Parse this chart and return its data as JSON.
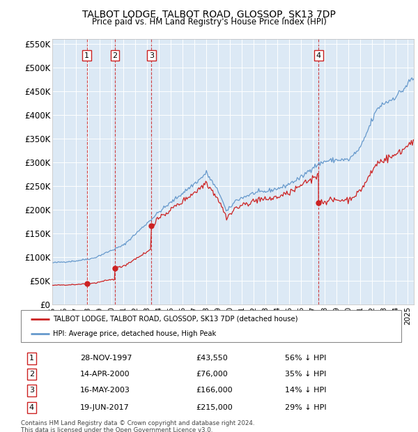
{
  "title": "TALBOT LODGE, TALBOT ROAD, GLOSSOP, SK13 7DP",
  "subtitle": "Price paid vs. HM Land Registry's House Price Index (HPI)",
  "ylim": [
    0,
    560000
  ],
  "yticks": [
    0,
    50000,
    100000,
    150000,
    200000,
    250000,
    300000,
    350000,
    400000,
    450000,
    500000,
    550000
  ],
  "ytick_labels": [
    "£0",
    "£50K",
    "£100K",
    "£150K",
    "£200K",
    "£250K",
    "£300K",
    "£350K",
    "£400K",
    "£450K",
    "£500K",
    "£550K"
  ],
  "plot_background": "#dce9f5",
  "hpi_color": "#6699cc",
  "price_color": "#cc2222",
  "marker_color": "#cc2222",
  "sale_events": [
    {
      "label": "1",
      "date_num": 1997.91,
      "price": 43550
    },
    {
      "label": "2",
      "date_num": 2000.29,
      "price": 76000
    },
    {
      "label": "3",
      "date_num": 2003.37,
      "price": 166000
    },
    {
      "label": "4",
      "date_num": 2017.46,
      "price": 215000
    }
  ],
  "vline_color": "#cc2222",
  "legend_property_label": "TALBOT LODGE, TALBOT ROAD, GLOSSOP, SK13 7DP (detached house)",
  "legend_hpi_label": "HPI: Average price, detached house, High Peak",
  "table_rows": [
    [
      "1",
      "28-NOV-1997",
      "£43,550",
      "56% ↓ HPI"
    ],
    [
      "2",
      "14-APR-2000",
      "£76,000",
      "35% ↓ HPI"
    ],
    [
      "3",
      "16-MAY-2003",
      "£166,000",
      "14% ↓ HPI"
    ],
    [
      "4",
      "19-JUN-2017",
      "£215,000",
      "29% ↓ HPI"
    ]
  ],
  "footnote": "Contains HM Land Registry data © Crown copyright and database right 2024.\nThis data is licensed under the Open Government Licence v3.0.",
  "xmin": 1995,
  "xmax": 2025.5,
  "hpi_waypoints": [
    [
      1995.0,
      88000
    ],
    [
      1997.0,
      92000
    ],
    [
      1998.5,
      98000
    ],
    [
      2001.0,
      125000
    ],
    [
      2004.0,
      195000
    ],
    [
      2007.5,
      265000
    ],
    [
      2008.0,
      278000
    ],
    [
      2009.2,
      230000
    ],
    [
      2009.7,
      195000
    ],
    [
      2010.5,
      220000
    ],
    [
      2012.0,
      235000
    ],
    [
      2013.0,
      238000
    ],
    [
      2014.5,
      248000
    ],
    [
      2016.0,
      268000
    ],
    [
      2017.0,
      290000
    ],
    [
      2018.0,
      302000
    ],
    [
      2019.0,
      305000
    ],
    [
      2020.0,
      305000
    ],
    [
      2021.0,
      330000
    ],
    [
      2022.0,
      390000
    ],
    [
      2022.5,
      415000
    ],
    [
      2023.0,
      425000
    ],
    [
      2023.5,
      430000
    ],
    [
      2024.0,
      440000
    ],
    [
      2024.5,
      450000
    ],
    [
      2025.0,
      465000
    ],
    [
      2025.3,
      475000
    ]
  ],
  "noise_seed": 42,
  "hpi_noise_scale": 0.009,
  "price_noise_scale": 0.013
}
